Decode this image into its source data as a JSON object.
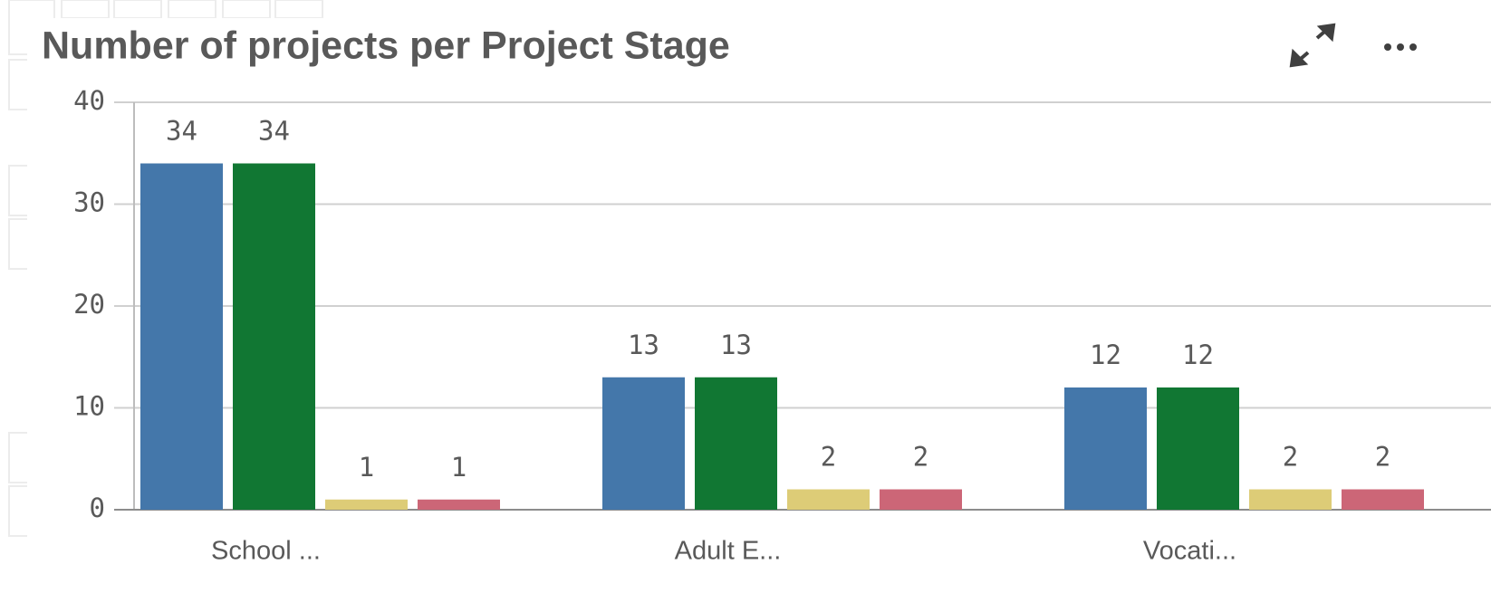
{
  "chart_data": {
    "type": "bar",
    "title": "Number of projects per Project Stage",
    "categories": [
      "School ...",
      "Adult E...",
      "Vocati..."
    ],
    "series": [
      {
        "color": "#4477aa",
        "values": [
          34,
          13,
          12
        ]
      },
      {
        "color": "#117733",
        "values": [
          34,
          13,
          12
        ]
      },
      {
        "color": "#ddcc77",
        "values": [
          1,
          2,
          2
        ]
      },
      {
        "color": "#cc6677",
        "values": [
          1,
          2,
          2
        ]
      }
    ],
    "ylim": [
      0,
      40
    ],
    "yticks": [
      0,
      10,
      20,
      30,
      40
    ],
    "grid": true
  }
}
